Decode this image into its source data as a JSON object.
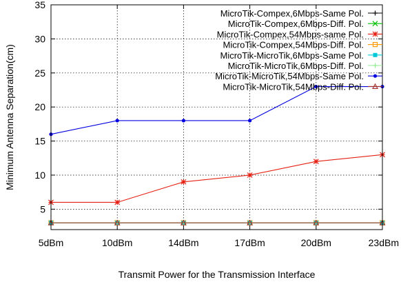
{
  "chart_data": {
    "type": "line",
    "title": "",
    "xlabel": "Transmit Power for the Transmission Interface",
    "ylabel": "Minimum Antenna Separation(cm)",
    "categories": [
      "5dBm",
      "10dBm",
      "14dBm",
      "17dBm",
      "20dBm",
      "23dBm"
    ],
    "ylim": [
      2,
      35
    ],
    "yticks": [
      5,
      10,
      15,
      20,
      25,
      30,
      35
    ],
    "grid": true,
    "legend_position": "top-right",
    "series": [
      {
        "name": "MicroTik-Compex,6Mbps-Same Pol.",
        "color": "#000000",
        "marker": "plus",
        "values": [
          3,
          3,
          3,
          3,
          3,
          3
        ]
      },
      {
        "name": "MicroTik-Compex,6Mbps-Diff. Pol.",
        "color": "#00c000",
        "marker": "cross",
        "values": [
          3,
          3,
          3,
          3,
          3,
          3
        ]
      },
      {
        "name": "MicroTik-Compex,54Mbps-same Pol.",
        "color": "#e51e10",
        "marker": "star",
        "values": [
          6,
          6,
          9,
          10,
          12,
          13
        ]
      },
      {
        "name": "MicroTik-Compex,54Mbps-Diff. Pol.",
        "color": "#ff9900",
        "marker": "square-open",
        "values": [
          3,
          3,
          3,
          3,
          3,
          3
        ]
      },
      {
        "name": "MicroTik-MicroTik,6Mbps-Same Pol.",
        "color": "#00c8d8",
        "marker": "square-filled",
        "values": [
          3,
          3,
          3,
          3,
          3,
          3
        ]
      },
      {
        "name": "MicroTik-MicroTik,6Mbps-Diff. Pol.",
        "color": "#90ee90",
        "marker": "plus",
        "values": [
          3,
          3,
          3,
          3,
          3,
          3
        ]
      },
      {
        "name": "MicroTik-MicroTik,54Mbps-Same Pol.",
        "color": "#0000e0",
        "marker": "dot",
        "values": [
          16,
          18,
          18,
          18,
          23,
          23
        ]
      },
      {
        "name": "MicroTik-MicroTik,54Mbps-Diff. Pol.",
        "color": "#a03028",
        "marker": "triangle",
        "values": [
          3,
          3,
          3,
          3,
          3,
          3
        ]
      }
    ]
  }
}
